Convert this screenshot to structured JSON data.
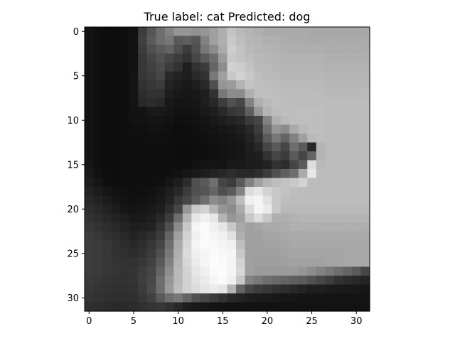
{
  "chart_data": {
    "type": "heatmap",
    "title": "True label: cat Predicted: dog",
    "xlabel": "",
    "ylabel": "",
    "colormap": "gray",
    "grid": false,
    "image_shape": [
      32,
      32
    ],
    "xlim": [
      -0.5,
      31.5
    ],
    "ylim": [
      31.5,
      -0.5
    ],
    "xticks": [
      0,
      5,
      10,
      15,
      20,
      25,
      30
    ],
    "yticks": [
      0,
      5,
      10,
      15,
      20,
      25,
      30
    ],
    "xtick_labels": [
      "0",
      "5",
      "10",
      "15",
      "20",
      "25",
      "30"
    ],
    "ytick_labels": [
      "0",
      "5",
      "10",
      "15",
      "20",
      "25",
      "30"
    ],
    "intensity_rows": [
      [
        20,
        15,
        12,
        12,
        15,
        18,
        60,
        85,
        110,
        130,
        150,
        150,
        145,
        150,
        160,
        175,
        195,
        185,
        180,
        175,
        170,
        170,
        170,
        170,
        170,
        168,
        168,
        168,
        168,
        168,
        168,
        168
      ],
      [
        20,
        15,
        12,
        12,
        15,
        18,
        65,
        90,
        110,
        120,
        90,
        95,
        85,
        130,
        160,
        175,
        200,
        190,
        182,
        180,
        175,
        175,
        172,
        172,
        172,
        170,
        170,
        170,
        170,
        170,
        170,
        170
      ],
      [
        20,
        15,
        12,
        12,
        15,
        18,
        60,
        80,
        90,
        100,
        80,
        60,
        80,
        120,
        140,
        170,
        205,
        195,
        185,
        182,
        180,
        178,
        175,
        175,
        175,
        175,
        175,
        172,
        172,
        172,
        172,
        172
      ],
      [
        20,
        15,
        12,
        12,
        15,
        18,
        55,
        70,
        80,
        70,
        60,
        50,
        70,
        90,
        110,
        155,
        200,
        195,
        190,
        185,
        182,
        180,
        178,
        178,
        178,
        178,
        178,
        175,
        175,
        175,
        175,
        175
      ],
      [
        20,
        15,
        12,
        12,
        15,
        18,
        55,
        65,
        75,
        60,
        50,
        30,
        50,
        60,
        100,
        140,
        210,
        205,
        195,
        185,
        185,
        182,
        180,
        180,
        180,
        180,
        180,
        178,
        178,
        178,
        178,
        178
      ],
      [
        20,
        15,
        12,
        12,
        15,
        20,
        55,
        60,
        70,
        40,
        35,
        30,
        40,
        50,
        120,
        160,
        200,
        210,
        200,
        190,
        185,
        185,
        182,
        182,
        182,
        182,
        182,
        180,
        180,
        180,
        180,
        180
      ],
      [
        20,
        15,
        12,
        12,
        15,
        20,
        50,
        55,
        60,
        35,
        30,
        25,
        30,
        40,
        80,
        150,
        155,
        180,
        195,
        192,
        190,
        188,
        185,
        185,
        185,
        185,
        185,
        182,
        182,
        182,
        182,
        182
      ],
      [
        20,
        15,
        12,
        12,
        15,
        20,
        45,
        50,
        50,
        30,
        25,
        22,
        25,
        30,
        50,
        120,
        140,
        140,
        175,
        190,
        192,
        190,
        188,
        188,
        188,
        188,
        188,
        185,
        185,
        185,
        185,
        185
      ],
      [
        20,
        15,
        12,
        12,
        15,
        20,
        40,
        45,
        40,
        25,
        20,
        20,
        22,
        30,
        40,
        60,
        80,
        70,
        130,
        175,
        185,
        190,
        190,
        188,
        188,
        188,
        188,
        188,
        188,
        188,
        188,
        188
      ],
      [
        20,
        15,
        12,
        12,
        15,
        18,
        20,
        25,
        25,
        22,
        18,
        18,
        20,
        25,
        30,
        40,
        55,
        60,
        95,
        150,
        180,
        188,
        190,
        190,
        190,
        190,
        190,
        188,
        188,
        188,
        188,
        188
      ],
      [
        20,
        15,
        12,
        12,
        15,
        18,
        18,
        20,
        20,
        18,
        16,
        16,
        18,
        20,
        25,
        30,
        35,
        40,
        60,
        70,
        130,
        175,
        185,
        190,
        190,
        190,
        190,
        188,
        188,
        188,
        188,
        188
      ],
      [
        20,
        15,
        12,
        12,
        14,
        16,
        16,
        18,
        18,
        16,
        14,
        14,
        16,
        18,
        20,
        22,
        25,
        30,
        40,
        60,
        110,
        150,
        140,
        170,
        185,
        190,
        190,
        188,
        188,
        188,
        188,
        188
      ],
      [
        20,
        15,
        12,
        12,
        14,
        15,
        15,
        16,
        16,
        15,
        14,
        14,
        15,
        16,
        18,
        20,
        22,
        25,
        35,
        50,
        90,
        120,
        100,
        130,
        160,
        185,
        188,
        188,
        188,
        188,
        188,
        188
      ],
      [
        20,
        15,
        12,
        12,
        14,
        15,
        15,
        15,
        15,
        14,
        13,
        13,
        14,
        15,
        16,
        18,
        20,
        22,
        30,
        40,
        70,
        90,
        70,
        110,
        90,
        40,
        180,
        188,
        188,
        188,
        188,
        188
      ],
      [
        20,
        15,
        12,
        12,
        14,
        15,
        15,
        15,
        15,
        14,
        13,
        13,
        14,
        15,
        16,
        18,
        20,
        22,
        28,
        30,
        50,
        70,
        60,
        90,
        70,
        100,
        180,
        188,
        188,
        188,
        188,
        188
      ],
      [
        22,
        15,
        12,
        12,
        14,
        15,
        15,
        15,
        15,
        14,
        14,
        15,
        18,
        20,
        22,
        20,
        25,
        25,
        28,
        30,
        35,
        50,
        45,
        70,
        90,
        220,
        185,
        188,
        188,
        188,
        188,
        188
      ],
      [
        25,
        18,
        14,
        12,
        14,
        15,
        15,
        15,
        15,
        16,
        18,
        22,
        25,
        30,
        35,
        40,
        45,
        40,
        40,
        45,
        60,
        80,
        95,
        110,
        170,
        230,
        188,
        188,
        188,
        188,
        188,
        188
      ],
      [
        30,
        22,
        16,
        14,
        14,
        15,
        15,
        15,
        16,
        22,
        30,
        45,
        80,
        90,
        110,
        70,
        60,
        90,
        130,
        160,
        180,
        190,
        195,
        200,
        210,
        188,
        188,
        188,
        188,
        188,
        188,
        188
      ],
      [
        35,
        28,
        22,
        18,
        16,
        15,
        16,
        18,
        22,
        30,
        40,
        60,
        80,
        85,
        100,
        80,
        90,
        130,
        220,
        230,
        210,
        200,
        195,
        190,
        188,
        188,
        188,
        188,
        188,
        188,
        188,
        188
      ],
      [
        40,
        35,
        28,
        22,
        18,
        16,
        18,
        20,
        25,
        35,
        55,
        70,
        90,
        110,
        140,
        130,
        150,
        190,
        240,
        245,
        225,
        200,
        190,
        188,
        188,
        188,
        188,
        188,
        188,
        188,
        188,
        188
      ],
      [
        45,
        40,
        35,
        28,
        22,
        20,
        22,
        25,
        30,
        45,
        70,
        150,
        200,
        210,
        180,
        150,
        140,
        170,
        220,
        245,
        235,
        200,
        185,
        185,
        185,
        185,
        185,
        185,
        185,
        185,
        185,
        185
      ],
      [
        50,
        45,
        40,
        35,
        30,
        25,
        25,
        30,
        40,
        60,
        110,
        180,
        230,
        240,
        230,
        180,
        150,
        160,
        200,
        220,
        200,
        175,
        175,
        178,
        180,
        180,
        180,
        180,
        180,
        180,
        180,
        180
      ],
      [
        55,
        50,
        45,
        40,
        35,
        30,
        32,
        35,
        50,
        80,
        140,
        200,
        245,
        250,
        240,
        230,
        200,
        170,
        160,
        165,
        170,
        170,
        172,
        175,
        175,
        175,
        175,
        175,
        175,
        175,
        175,
        175
      ],
      [
        60,
        55,
        50,
        45,
        40,
        35,
        40,
        45,
        60,
        100,
        160,
        210,
        240,
        250,
        245,
        240,
        225,
        175,
        160,
        160,
        165,
        165,
        168,
        170,
        170,
        170,
        170,
        170,
        170,
        170,
        170,
        170
      ],
      [
        60,
        58,
        55,
        50,
        45,
        40,
        45,
        55,
        70,
        110,
        170,
        215,
        245,
        250,
        248,
        245,
        240,
        190,
        160,
        160,
        162,
        162,
        165,
        168,
        168,
        168,
        168,
        168,
        168,
        168,
        168,
        168
      ],
      [
        60,
        58,
        55,
        50,
        48,
        45,
        50,
        60,
        80,
        120,
        175,
        220,
        240,
        245,
        250,
        248,
        245,
        200,
        160,
        160,
        160,
        160,
        162,
        165,
        165,
        165,
        165,
        165,
        165,
        168,
        168,
        168
      ],
      [
        60,
        58,
        55,
        52,
        50,
        50,
        55,
        65,
        90,
        130,
        180,
        215,
        235,
        245,
        252,
        250,
        245,
        210,
        160,
        158,
        158,
        158,
        160,
        162,
        162,
        162,
        162,
        165,
        165,
        168,
        168,
        168
      ],
      [
        60,
        58,
        55,
        52,
        50,
        52,
        60,
        70,
        100,
        140,
        185,
        210,
        230,
        240,
        250,
        252,
        245,
        215,
        160,
        155,
        155,
        155,
        155,
        155,
        150,
        140,
        130,
        120,
        110,
        100,
        90,
        70
      ],
      [
        58,
        55,
        52,
        50,
        50,
        52,
        62,
        72,
        110,
        150,
        185,
        210,
        225,
        235,
        245,
        250,
        240,
        200,
        130,
        120,
        110,
        105,
        100,
        95,
        90,
        80,
        70,
        60,
        50,
        45,
        40,
        35
      ],
      [
        55,
        52,
        50,
        48,
        48,
        50,
        60,
        75,
        110,
        155,
        190,
        210,
        220,
        230,
        235,
        230,
        180,
        100,
        70,
        60,
        55,
        50,
        45,
        40,
        35,
        30,
        30,
        28,
        26,
        25,
        24,
        22
      ],
      [
        52,
        50,
        48,
        46,
        46,
        48,
        55,
        65,
        90,
        110,
        120,
        100,
        80,
        70,
        60,
        50,
        40,
        35,
        30,
        28,
        26,
        24,
        22,
        22,
        20,
        20,
        20,
        20,
        20,
        20,
        20,
        20
      ],
      [
        48,
        46,
        44,
        42,
        42,
        44,
        48,
        52,
        55,
        50,
        40,
        30,
        25,
        22,
        20,
        20,
        18,
        18,
        18,
        18,
        18,
        18,
        18,
        18,
        18,
        18,
        18,
        18,
        18,
        18,
        18,
        18
      ]
    ]
  }
}
